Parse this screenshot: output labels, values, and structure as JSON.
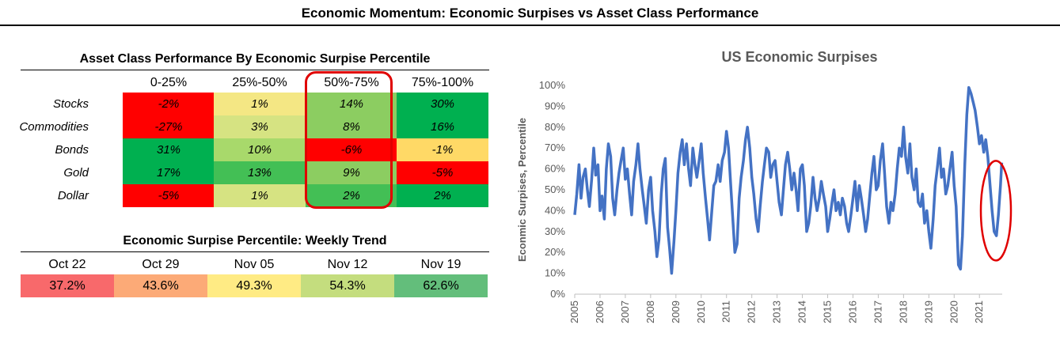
{
  "title": "Economic Momentum: Economic Surpises vs Asset Class Performance",
  "performance": {
    "title": "Asset Class Performance By Economic Surpise Percentile",
    "columns": [
      "0-25%",
      "25%-50%",
      "50%-75%",
      "75%-100%"
    ],
    "rows": [
      {
        "label": "Stocks",
        "values": [
          "-2%",
          "1%",
          "14%",
          "30%"
        ],
        "colors": [
          "#ff0000",
          "#f4e784",
          "#8ccd61",
          "#00b050"
        ]
      },
      {
        "label": "Commodities",
        "values": [
          "-27%",
          "3%",
          "8%",
          "16%"
        ],
        "colors": [
          "#ff0000",
          "#d6e382",
          "#8ccd61",
          "#00b050"
        ]
      },
      {
        "label": "Bonds",
        "values": [
          "31%",
          "10%",
          "-6%",
          "-1%"
        ],
        "colors": [
          "#00b050",
          "#a8d96b",
          "#ff0000",
          "#ffd966"
        ]
      },
      {
        "label": "Gold",
        "values": [
          "17%",
          "13%",
          "9%",
          "-5%"
        ],
        "colors": [
          "#00b050",
          "#43bf55",
          "#8ccd61",
          "#ff0000"
        ]
      },
      {
        "label": "Dollar",
        "values": [
          "-5%",
          "1%",
          "2%",
          "2%"
        ],
        "colors": [
          "#ff0000",
          "#d6e382",
          "#43bf55",
          "#00b050"
        ]
      }
    ],
    "highlight_color": "#e00000"
  },
  "trend": {
    "title": "Economic Surpise Percentile: Weekly Trend",
    "weeks": [
      "Oct 22",
      "Oct 29",
      "Nov 05",
      "Nov 12",
      "Nov 19"
    ],
    "values": [
      "37.2%",
      "43.6%",
      "49.3%",
      "54.3%",
      "62.6%"
    ],
    "colors": [
      "#f8696b",
      "#fcaa77",
      "#ffeb84",
      "#c4dd7e",
      "#63be7b"
    ]
  },
  "chart_data": {
    "type": "line",
    "title": "US Economic Surpises",
    "ylabel": "Econmic Surpises, Percentile",
    "xlabel": "",
    "x_ticks": [
      "2005",
      "2006",
      "2007",
      "2008",
      "2009",
      "2010",
      "2011",
      "2012",
      "2013",
      "2014",
      "2015",
      "2016",
      "2017",
      "2018",
      "2019",
      "2020",
      "2021"
    ],
    "y_ticks": [
      "0%",
      "10%",
      "20%",
      "30%",
      "40%",
      "50%",
      "60%",
      "70%",
      "80%",
      "90%",
      "100%"
    ],
    "ylim": [
      0,
      100
    ],
    "xlim": [
      2005,
      2021.9
    ],
    "grid": false,
    "line_color": "#4472c4",
    "annotation_color": "#e00000",
    "series": [
      {
        "x": [
          2005.0,
          2005.08,
          2005.17,
          2005.25,
          2005.33,
          2005.42,
          2005.5,
          2005.58,
          2005.67,
          2005.75,
          2005.83,
          2005.92,
          2006.0,
          2006.08,
          2006.17,
          2006.25,
          2006.33,
          2006.42,
          2006.5,
          2006.58,
          2006.67,
          2006.75,
          2006.83,
          2006.92,
          2007.0,
          2007.08,
          2007.17,
          2007.25,
          2007.33,
          2007.42,
          2007.5,
          2007.58,
          2007.67,
          2007.75,
          2007.83,
          2007.92,
          2008.0,
          2008.08,
          2008.17,
          2008.25,
          2008.33,
          2008.42,
          2008.5,
          2008.58,
          2008.67,
          2008.75,
          2008.83,
          2008.92,
          2009.0,
          2009.08,
          2009.17,
          2009.25,
          2009.33,
          2009.42,
          2009.5,
          2009.58,
          2009.67,
          2009.75,
          2009.83,
          2009.92,
          2010.0,
          2010.08,
          2010.17,
          2010.25,
          2010.33,
          2010.42,
          2010.5,
          2010.58,
          2010.67,
          2010.75,
          2010.83,
          2010.92,
          2011.0,
          2011.08,
          2011.17,
          2011.25,
          2011.33,
          2011.42,
          2011.5,
          2011.58,
          2011.67,
          2011.75,
          2011.83,
          2011.92,
          2012.0,
          2012.08,
          2012.17,
          2012.25,
          2012.33,
          2012.42,
          2012.5,
          2012.58,
          2012.67,
          2012.75,
          2012.83,
          2012.92,
          2013.0,
          2013.08,
          2013.17,
          2013.25,
          2013.33,
          2013.42,
          2013.5,
          2013.58,
          2013.67,
          2013.75,
          2013.83,
          2013.92,
          2014.0,
          2014.08,
          2014.17,
          2014.25,
          2014.33,
          2014.42,
          2014.5,
          2014.58,
          2014.67,
          2014.75,
          2014.83,
          2014.92,
          2015.0,
          2015.08,
          2015.17,
          2015.25,
          2015.33,
          2015.42,
          2015.5,
          2015.58,
          2015.67,
          2015.75,
          2015.83,
          2015.92,
          2016.0,
          2016.08,
          2016.17,
          2016.25,
          2016.33,
          2016.42,
          2016.5,
          2016.58,
          2016.67,
          2016.75,
          2016.83,
          2016.92,
          2017.0,
          2017.08,
          2017.17,
          2017.25,
          2017.33,
          2017.42,
          2017.5,
          2017.58,
          2017.67,
          2017.75,
          2017.83,
          2017.92,
          2018.0,
          2018.08,
          2018.17,
          2018.25,
          2018.33,
          2018.42,
          2018.5,
          2018.58,
          2018.67,
          2018.75,
          2018.83,
          2018.92,
          2019.0,
          2019.08,
          2019.17,
          2019.25,
          2019.33,
          2019.42,
          2019.5,
          2019.58,
          2019.67,
          2019.75,
          2019.83,
          2019.92,
          2020.0,
          2020.08,
          2020.17,
          2020.25,
          2020.33,
          2020.42,
          2020.5,
          2020.58,
          2020.67,
          2020.75,
          2020.83,
          2020.92,
          2021.0,
          2021.08,
          2021.17,
          2021.25,
          2021.33,
          2021.42,
          2021.5,
          2021.58,
          2021.67,
          2021.75,
          2021.83,
          2021.88
        ],
        "y": [
          38,
          48,
          62,
          46,
          56,
          60,
          50,
          42,
          55,
          70,
          57,
          62,
          40,
          47,
          36,
          60,
          72,
          66,
          46,
          38,
          50,
          58,
          64,
          70,
          55,
          60,
          48,
          38,
          54,
          62,
          72,
          60,
          50,
          42,
          34,
          50,
          56,
          40,
          30,
          18,
          26,
          48,
          60,
          65,
          32,
          22,
          10,
          25,
          40,
          58,
          68,
          74,
          62,
          72,
          60,
          52,
          70,
          62,
          56,
          64,
          72,
          58,
          46,
          36,
          26,
          40,
          52,
          54,
          62,
          54,
          64,
          68,
          78,
          70,
          52,
          36,
          20,
          24,
          46,
          56,
          64,
          74,
          80,
          70,
          56,
          48,
          36,
          30,
          42,
          54,
          62,
          70,
          68,
          56,
          62,
          64,
          54,
          44,
          38,
          50,
          62,
          68,
          60,
          50,
          58,
          50,
          40,
          60,
          62,
          52,
          30,
          34,
          42,
          56,
          46,
          40,
          46,
          54,
          48,
          42,
          30,
          36,
          44,
          50,
          40,
          44,
          38,
          46,
          42,
          34,
          30,
          38,
          46,
          54,
          40,
          52,
          46,
          38,
          30,
          36,
          48,
          58,
          66,
          50,
          52,
          64,
          72,
          58,
          42,
          34,
          44,
          40,
          48,
          60,
          70,
          66,
          80,
          66,
          58,
          72,
          56,
          50,
          60,
          44,
          42,
          48,
          34,
          40,
          30,
          22,
          36,
          52,
          60,
          70,
          56,
          60,
          48,
          52,
          60,
          68,
          52,
          42,
          14,
          12,
          28,
          62,
          86,
          99,
          96,
          92,
          88,
          80,
          72,
          76,
          68,
          74,
          66,
          52,
          40,
          30,
          28,
          38,
          52,
          63
        ]
      }
    ]
  }
}
